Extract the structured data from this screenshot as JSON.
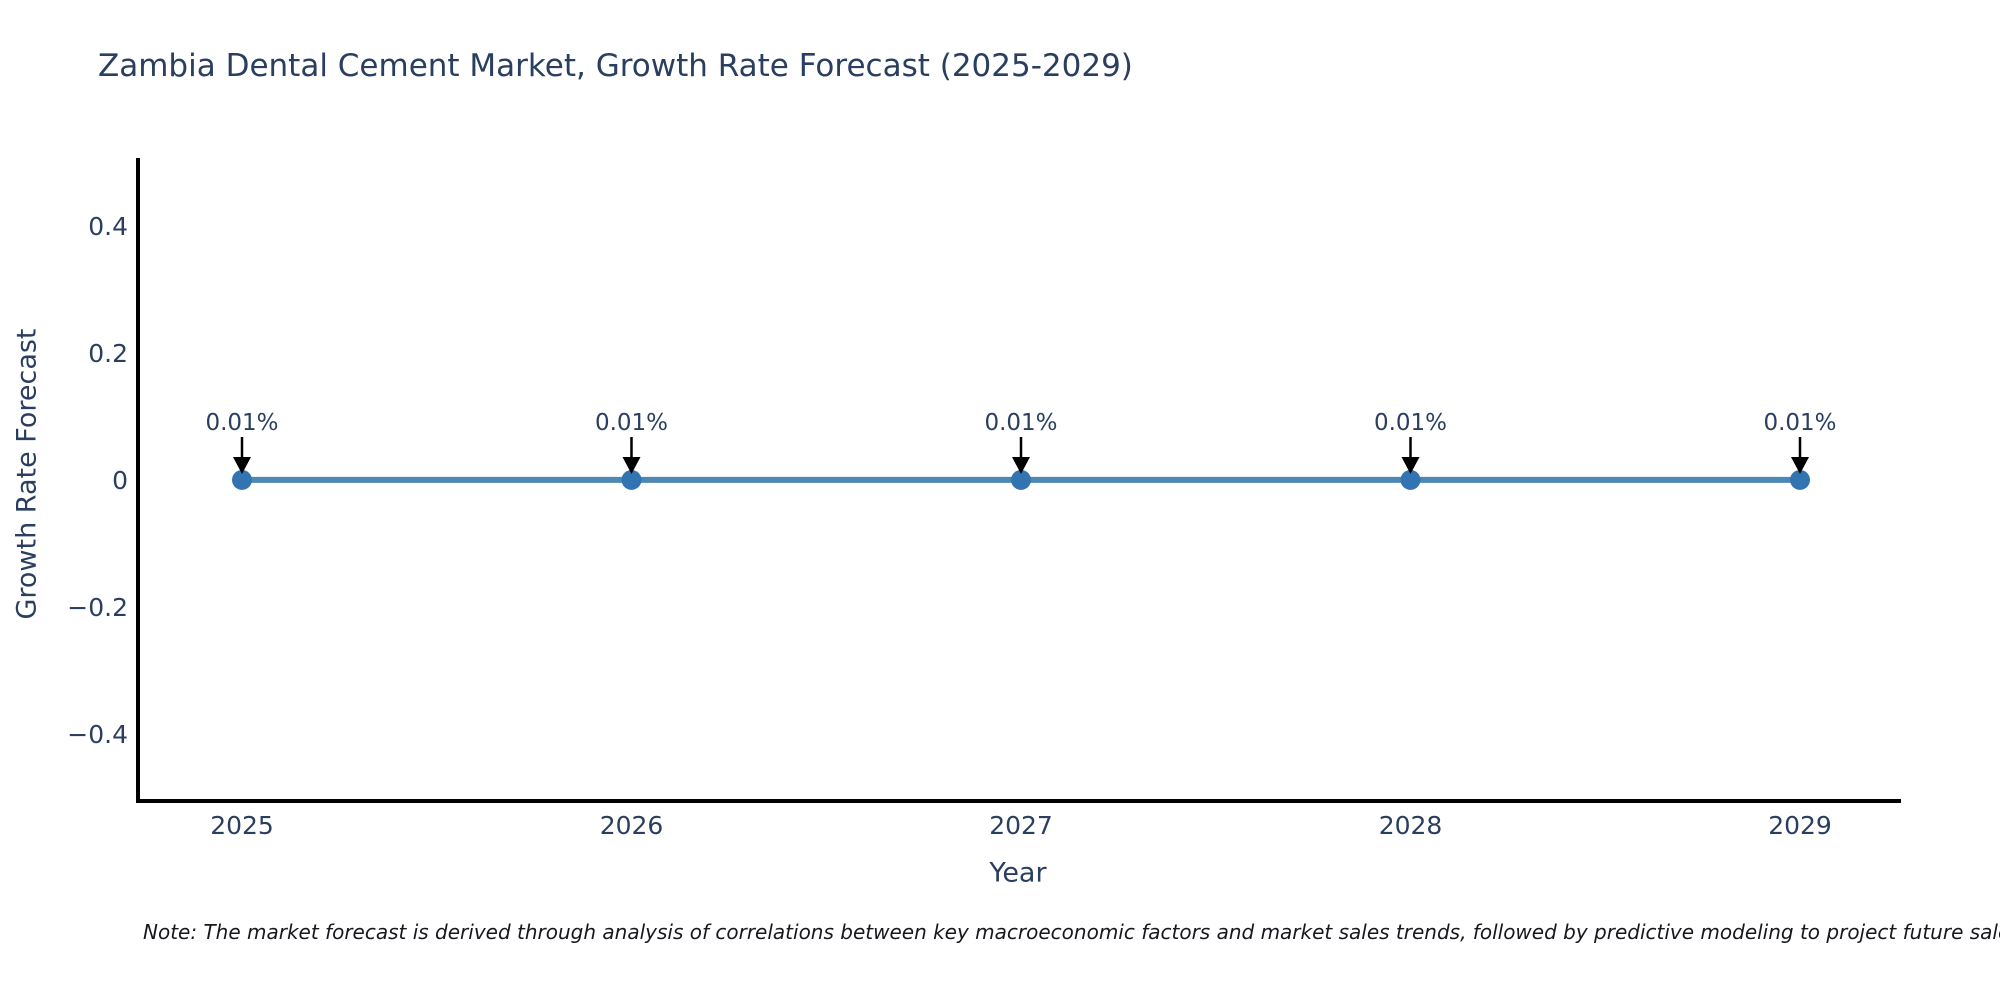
{
  "figure": {
    "title": "Zambia Dental Cement Market, Growth Rate Forecast (2025-2029)",
    "xlabel": "Year",
    "ylabel": "Growth Rate Forecast",
    "note": "Note: The market forecast is derived through analysis of correlations between key macroeconomic factors and market sales trends, followed by predictive modeling to project future sales",
    "colors": {
      "background": "#ffffff",
      "title_text": "#2a3f5f",
      "axis_line": "#000000",
      "tick_text": "#2a3f5f",
      "annotation_text": "#2a3f5f",
      "annotation_arrow": "#000000",
      "series_line": "#4d87b4",
      "marker_fill": "#3174b1",
      "note_text": "#16181d"
    }
  },
  "chart_data": {
    "type": "line",
    "title": "Zambia Dental Cement Market, Growth Rate Forecast (2025-2029)",
    "xlabel": "Year",
    "ylabel": "Growth Rate Forecast",
    "x": [
      "2025",
      "2026",
      "2027",
      "2028",
      "2029"
    ],
    "series": [
      {
        "name": "Growth Rate Forecast",
        "values_percent": [
          0.01,
          0.01,
          0.01,
          0.01,
          0.01
        ],
        "point_labels": [
          "0.01%",
          "0.01%",
          "0.01%",
          "0.01%",
          "0.01%"
        ]
      }
    ],
    "yticks": [
      {
        "value": 0.4,
        "label": "0.4"
      },
      {
        "value": 0.2,
        "label": "0.2"
      },
      {
        "value": 0,
        "label": "0"
      },
      {
        "value": -0.2,
        "label": "−0.2"
      },
      {
        "value": -0.4,
        "label": "−0.4"
      }
    ],
    "ylim": [
      -0.505,
      0.505
    ],
    "grid": false,
    "legend_position": "none",
    "annotations_style": "down-arrow-to-point"
  }
}
